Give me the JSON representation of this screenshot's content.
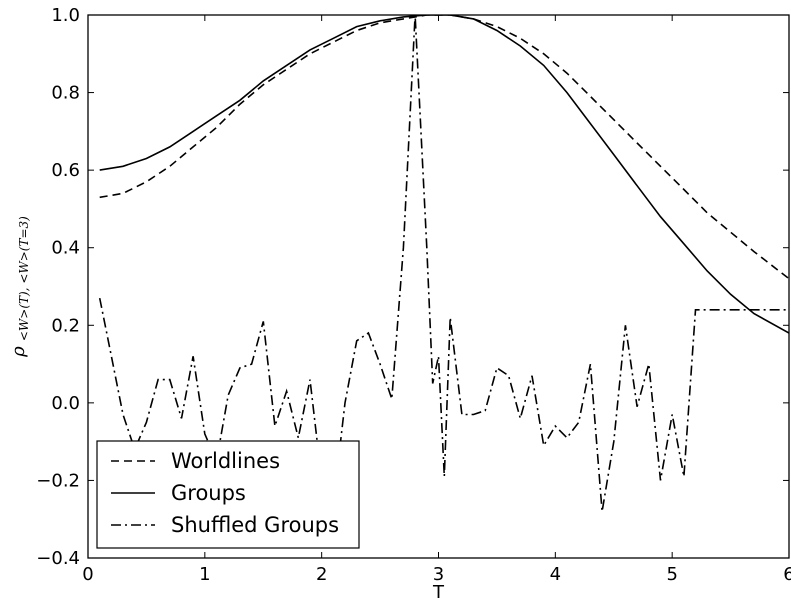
{
  "chart_data": {
    "type": "line",
    "title": "",
    "xlabel": "T",
    "ylabel": {
      "rho": "ρ",
      "subscript": "<W>(T), <W>(T=3)"
    },
    "xlim": [
      0,
      6
    ],
    "ylim": [
      -0.4,
      1.0
    ],
    "xticks": [
      0,
      1,
      2,
      3,
      4,
      5,
      6
    ],
    "xtick_labels": [
      "0",
      "1",
      "2",
      "3",
      "4",
      "5",
      "6"
    ],
    "yticks": [
      -0.4,
      -0.2,
      0.0,
      0.2,
      0.4,
      0.6,
      0.8,
      1.0
    ],
    "ytick_labels": [
      "−0.4",
      "−0.2",
      "0.0",
      "0.2",
      "0.4",
      "0.6",
      "0.8",
      "1.0"
    ],
    "grid": false,
    "legend_position": "lower-left",
    "series": [
      {
        "name": "Worldlines",
        "style": "dashed",
        "color": "#000000",
        "x": [
          0.1,
          0.3,
          0.5,
          0.7,
          0.9,
          1.1,
          1.3,
          1.5,
          1.7,
          1.9,
          2.1,
          2.3,
          2.5,
          2.7,
          2.9,
          3.0,
          3.1,
          3.3,
          3.5,
          3.7,
          3.9,
          4.1,
          4.3,
          4.5,
          4.7,
          4.9,
          5.1,
          5.3,
          5.5,
          5.7,
          6.0
        ],
        "y": [
          0.53,
          0.54,
          0.57,
          0.61,
          0.66,
          0.71,
          0.77,
          0.82,
          0.86,
          0.9,
          0.93,
          0.96,
          0.98,
          0.99,
          1.0,
          1.0,
          1.0,
          0.99,
          0.97,
          0.94,
          0.9,
          0.85,
          0.79,
          0.73,
          0.67,
          0.61,
          0.55,
          0.49,
          0.44,
          0.39,
          0.32
        ]
      },
      {
        "name": "Groups",
        "style": "solid",
        "color": "#000000",
        "x": [
          0.1,
          0.3,
          0.5,
          0.7,
          0.9,
          1.1,
          1.3,
          1.5,
          1.7,
          1.9,
          2.1,
          2.3,
          2.5,
          2.7,
          2.9,
          3.0,
          3.1,
          3.3,
          3.5,
          3.7,
          3.9,
          4.1,
          4.3,
          4.5,
          4.7,
          4.9,
          5.1,
          5.3,
          5.5,
          5.7,
          6.0
        ],
        "y": [
          0.6,
          0.61,
          0.63,
          0.66,
          0.7,
          0.74,
          0.78,
          0.83,
          0.87,
          0.91,
          0.94,
          0.97,
          0.985,
          0.995,
          1.0,
          1.0,
          1.0,
          0.99,
          0.96,
          0.92,
          0.87,
          0.8,
          0.72,
          0.64,
          0.56,
          0.48,
          0.41,
          0.34,
          0.28,
          0.23,
          0.18
        ]
      },
      {
        "name": "Shuffled Groups",
        "style": "dashdot",
        "color": "#000000",
        "x": [
          0.1,
          0.2,
          0.3,
          0.4,
          0.5,
          0.6,
          0.7,
          0.8,
          0.9,
          1.0,
          1.1,
          1.2,
          1.3,
          1.4,
          1.5,
          1.6,
          1.7,
          1.8,
          1.9,
          2.0,
          2.1,
          2.2,
          2.3,
          2.4,
          2.5,
          2.6,
          2.7,
          2.8,
          2.9,
          2.95,
          3.0,
          3.05,
          3.1,
          3.2,
          3.3,
          3.4,
          3.5,
          3.6,
          3.7,
          3.8,
          3.9,
          4.0,
          4.1,
          4.2,
          4.3,
          4.4,
          4.5,
          4.6,
          4.7,
          4.8,
          4.9,
          5.0,
          5.1,
          5.2,
          5.3,
          5.4,
          5.5,
          5.6,
          5.7,
          5.8,
          5.9,
          6.0
        ],
        "y": [
          0.27,
          0.12,
          -0.03,
          -0.12,
          -0.05,
          0.06,
          0.06,
          -0.04,
          0.12,
          -0.08,
          -0.15,
          0.02,
          0.09,
          0.1,
          0.21,
          -0.06,
          0.03,
          -0.09,
          0.06,
          -0.2,
          -0.26,
          0.0,
          0.16,
          0.18,
          0.1,
          0.01,
          0.4,
          1.0,
          0.4,
          0.05,
          0.12,
          -0.19,
          0.22,
          -0.03,
          -0.03,
          -0.02,
          0.09,
          0.07,
          -0.04,
          0.07,
          -0.11,
          -0.06,
          -0.09,
          -0.05,
          0.1,
          -0.28,
          -0.1,
          0.2,
          -0.01,
          0.1,
          -0.2,
          -0.03,
          -0.19,
          0.24,
          0.24,
          0.24,
          0.24,
          0.24,
          0.24,
          0.24,
          0.24,
          0.24
        ]
      }
    ]
  }
}
